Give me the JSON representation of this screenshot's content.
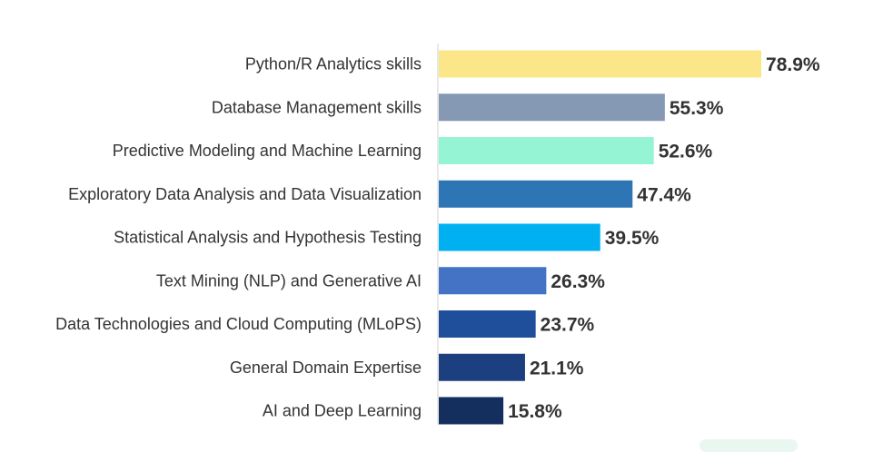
{
  "chart_data": {
    "type": "bar",
    "orientation": "horizontal",
    "categories": [
      "Python/R Analytics skills",
      "Database Management skills",
      "Predictive Modeling and Machine Learning",
      "Exploratory Data Analysis and Data Visualization",
      "Statistical Analysis and Hypothesis Testing",
      "Text Mining (NLP) and Generative AI",
      "Data Technologies and Cloud Computing (MLoPS)",
      "General Domain Expertise",
      "AI and Deep Learning"
    ],
    "values": [
      78.9,
      55.3,
      52.6,
      47.4,
      39.5,
      26.3,
      23.7,
      21.1,
      15.8
    ],
    "value_labels": [
      "78.9%",
      "55.3%",
      "52.6%",
      "47.4%",
      "39.5%",
      "26.3%",
      "23.7%",
      "21.1%",
      "15.8%"
    ],
    "colors": [
      "#fbe68a",
      "#8598b4",
      "#94f4d3",
      "#2e75b6",
      "#00b0f0",
      "#4472c4",
      "#1f4e9a",
      "#1c3f80",
      "#142f5e"
    ],
    "title": "",
    "xlabel": "",
    "ylabel": "",
    "xlim": [
      0,
      100
    ],
    "grid": false,
    "legend": "none"
  }
}
